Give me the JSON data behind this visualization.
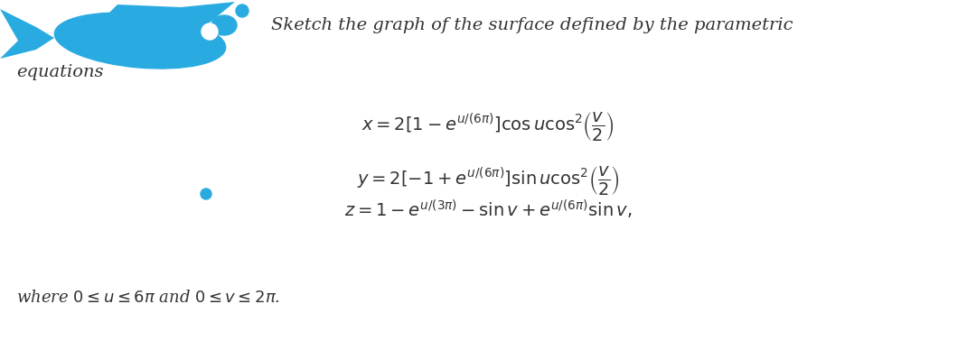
{
  "title_line1": "Sketch the graph of the surface defined by the parametric",
  "title_line2": "equations",
  "eq1": "$x = 2\\left[1 - e^{u/(6\\pi)}\\right]\\cos u\\cos^2\\!\\left(\\dfrac{v}{2}\\right)$",
  "eq2": "$y = 2\\left[-1 + e^{u/(6\\pi)}\\right]\\sin u\\cos^2\\!\\left(\\dfrac{v}{2}\\right)$",
  "eq3": "$z = 1 - e^{u/(3\\pi)} - \\sin v + e^{u/(6\\pi)}\\sin v,$",
  "footer": "where $0 \\leq u \\leq 6\\pi$ and $0 \\leq v \\leq 2\\pi$.",
  "bullet_color": "#29ABE2",
  "fish_color": "#29ABE2",
  "bg_color": "#FFFFFF",
  "text_color": "#333333",
  "title_fontsize": 14,
  "eq_fontsize": 14,
  "footer_fontsize": 13
}
